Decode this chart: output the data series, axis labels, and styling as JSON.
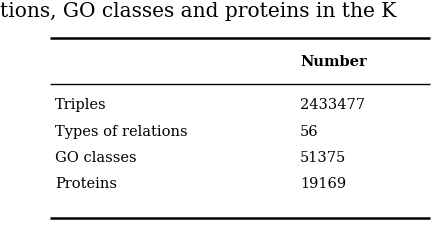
{
  "caption_text": "tions, GO classes and proteins in the K",
  "header_col": "Number",
  "rows": [
    [
      "Triples",
      "2433477"
    ],
    [
      "Types of relations",
      "56"
    ],
    [
      "GO classes",
      "51375"
    ],
    [
      "Proteins",
      "19169"
    ]
  ],
  "background_color": "#ffffff",
  "text_color": "#000000",
  "font_size": 10.5,
  "header_font_size": 10.5,
  "caption_font_size": 14.5
}
